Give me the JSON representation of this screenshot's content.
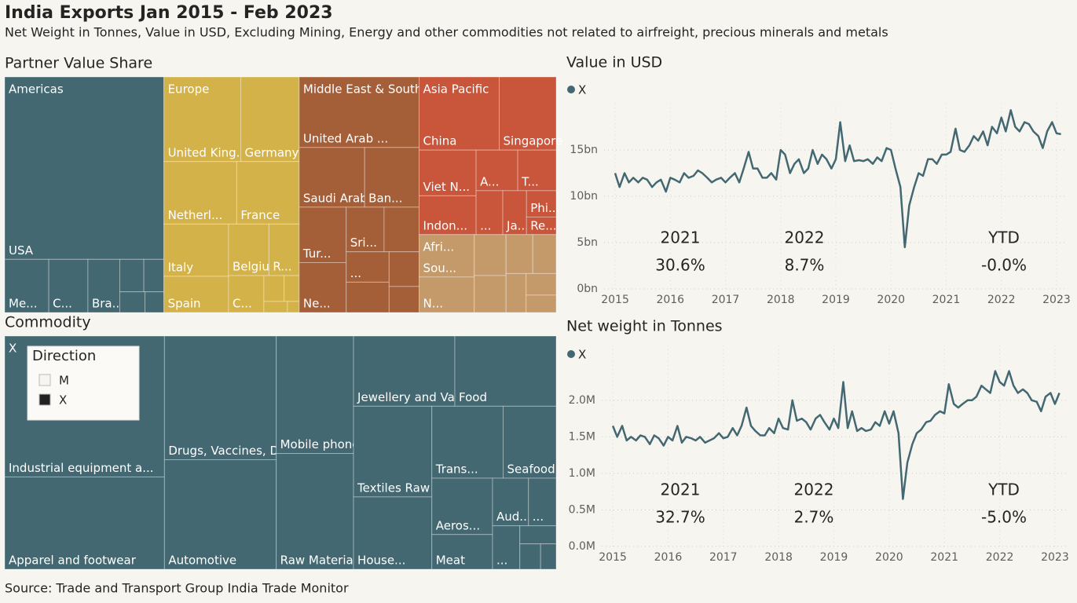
{
  "header": {
    "title": "India Exports Jan 2015 - Feb 2023",
    "subtitle": "Net Weight in Tonnes, Value in USD, Excluding Mining, Energy and other commodities not related to airfreight, precious minerals and metals"
  },
  "source": "Source: Trade and Transport Group India Trade Monitor",
  "chart_data": [
    {
      "type": "treemap",
      "title": "Partner Value Share",
      "groups": [
        {
          "name": "Americas",
          "color": "#436872",
          "categories": [
            "USA",
            "Me...",
            "C...",
            "Bra...",
            null,
            null,
            null,
            null
          ],
          "values": [
            22.3,
            1.8,
            1.6,
            1.3,
            0.6,
            0.5,
            0.4,
            0.3
          ]
        },
        {
          "name": "Europe",
          "color": "#d4b24a",
          "categories": [
            "United King...",
            "Germany",
            "Netherl...",
            "France",
            "Italy",
            "Spain",
            "Belgium",
            "R...",
            "C...",
            null,
            null,
            null,
            null
          ],
          "values": [
            5.0,
            3.8,
            3.5,
            3.0,
            2.6,
            1.8,
            1.6,
            1.2,
            1.0,
            0.4,
            0.3,
            0.2,
            0.1
          ]
        },
        {
          "name": "Middle East & South Asia",
          "color": "#a55f38",
          "categories": [
            "United Arab ...",
            "Saudi Arabia",
            "Ban...",
            "Tur...",
            "Ne...",
            "Sri...",
            null,
            "...",
            null,
            null,
            null
          ],
          "values": [
            6.5,
            3.0,
            2.5,
            2.0,
            1.8,
            1.3,
            1.2,
            1.0,
            1.0,
            0.8,
            0.6
          ]
        },
        {
          "name": "Asia Pacific",
          "color": "#c9553b",
          "categories": [
            "China",
            "Singapore",
            "Viet N...",
            "Indon...",
            "A...",
            "T...",
            "...",
            "Ja...",
            "Phi...",
            "Re..."
          ],
          "values": [
            4.5,
            3.2,
            2.0,
            1.7,
            1.3,
            1.2,
            0.9,
            0.8,
            0.6,
            0.4
          ]
        },
        {
          "name": "Afri...",
          "color": "#c49a6a",
          "categories": [
            "Sou...",
            "N...",
            null,
            null,
            null,
            null,
            null,
            null,
            null
          ],
          "values": [
            1.8,
            1.5,
            1.0,
            0.9,
            0.8,
            0.7,
            0.6,
            0.5,
            0.4
          ]
        }
      ]
    },
    {
      "type": "treemap",
      "title": "Commodity",
      "groups": [
        {
          "name": "X",
          "color": "#436872",
          "categories": [
            "Industrial equipment a...",
            "Apparel and footwear",
            "Drugs, Vaccines, Dia...",
            "Automotive",
            "Mobile phones and c...",
            "Raw Materials an...",
            "Jewellery and Val...",
            "Food",
            "Textiles Raw Mate...",
            "House...",
            "Trans...",
            "Seafood",
            "Aeros...",
            "Meat",
            "Aud...",
            "...",
            "...",
            null,
            null,
            null
          ],
          "values": [
            17.1,
            11.2,
            10.5,
            9.3,
            6.9,
            6.8,
            5.4,
            5.4,
            5.4,
            4.3,
            3.9,
            2.9,
            2.6,
            1.6,
            1.3,
            1.0,
            0.9,
            0.5,
            0.4,
            0.3
          ]
        }
      ],
      "legend": {
        "title": "Direction",
        "items": [
          {
            "name": "M",
            "color": "#f7f5f0"
          },
          {
            "name": "X",
            "color": "#222222"
          }
        ]
      }
    },
    {
      "type": "line",
      "title": "Value in USD",
      "x": [
        2015,
        2015.08,
        2015.17,
        2015.25,
        2015.33,
        2015.42,
        2015.5,
        2015.58,
        2015.67,
        2015.75,
        2015.83,
        2015.92,
        2016,
        2016.08,
        2016.17,
        2016.25,
        2016.33,
        2016.42,
        2016.5,
        2016.58,
        2016.67,
        2016.75,
        2016.83,
        2016.92,
        2017,
        2017.08,
        2017.17,
        2017.25,
        2017.33,
        2017.42,
        2017.5,
        2017.58,
        2017.67,
        2017.75,
        2017.83,
        2017.92,
        2018,
        2018.08,
        2018.17,
        2018.25,
        2018.33,
        2018.42,
        2018.5,
        2018.58,
        2018.67,
        2018.75,
        2018.83,
        2018.92,
        2019,
        2019.08,
        2019.17,
        2019.25,
        2019.33,
        2019.42,
        2019.5,
        2019.58,
        2019.67,
        2019.75,
        2019.83,
        2019.92,
        2020,
        2020.08,
        2020.17,
        2020.25,
        2020.33,
        2020.42,
        2020.5,
        2020.58,
        2020.67,
        2020.75,
        2020.83,
        2020.92,
        2021,
        2021.08,
        2021.17,
        2021.25,
        2021.33,
        2021.42,
        2021.5,
        2021.58,
        2021.67,
        2021.75,
        2021.83,
        2021.92,
        2022,
        2022.08,
        2022.17,
        2022.25,
        2022.33,
        2022.42,
        2022.5,
        2022.58,
        2022.67,
        2022.75,
        2022.83,
        2022.92,
        2023,
        2023.08
      ],
      "series": [
        {
          "name": "X",
          "color": "#436872",
          "values": [
            12.5,
            11.0,
            12.5,
            11.5,
            12.0,
            11.5,
            12.0,
            11.8,
            11.0,
            11.5,
            11.8,
            10.5,
            12.0,
            11.8,
            11.5,
            12.5,
            12.0,
            12.2,
            12.8,
            12.5,
            12.0,
            11.5,
            11.8,
            12.0,
            11.5,
            12.0,
            12.5,
            11.5,
            13.0,
            14.8,
            13.0,
            13.0,
            12.0,
            12.0,
            12.5,
            11.8,
            15.0,
            14.5,
            12.5,
            13.5,
            14.0,
            12.5,
            13.0,
            15.0,
            13.5,
            14.5,
            14.0,
            13.0,
            14.0,
            18.0,
            13.8,
            15.5,
            13.8,
            13.9,
            13.8,
            14.0,
            13.5,
            14.2,
            13.8,
            15.2,
            15.0,
            13.0,
            11.0,
            4.5,
            9.0,
            11.0,
            12.5,
            12.2,
            14.0,
            14.0,
            13.5,
            14.5,
            14.5,
            14.8,
            17.3,
            15.0,
            14.8,
            15.5,
            16.5,
            16.0,
            17.0,
            15.5,
            17.5,
            16.8,
            18.5,
            17.0,
            19.3,
            17.5,
            17.0,
            18.0,
            17.8,
            17.0,
            16.5,
            15.2,
            17.0,
            18.0,
            16.8,
            16.7
          ]
        }
      ],
      "xlim": [
        2014.8,
        2023.2
      ],
      "xticks": [
        2015,
        2016,
        2017,
        2018,
        2019,
        2020,
        2021,
        2022,
        2023
      ],
      "ylim": [
        0,
        20
      ],
      "yticks": [
        {
          "value": 0,
          "label": "0bn"
        },
        {
          "value": 5,
          "label": "5bn"
        },
        {
          "value": 10,
          "label": "10bn"
        },
        {
          "value": 15,
          "label": "15bn"
        }
      ],
      "grid": true,
      "stats": [
        {
          "label": "2021",
          "value": "30.6%"
        },
        {
          "label": "2022",
          "value": "8.7%"
        },
        {
          "label": "YTD",
          "value": "-0.0%"
        }
      ]
    },
    {
      "type": "line",
      "title": "Net weight in Tonnes",
      "x": [
        2015,
        2015.08,
        2015.17,
        2015.25,
        2015.33,
        2015.42,
        2015.5,
        2015.58,
        2015.67,
        2015.75,
        2015.83,
        2015.92,
        2016,
        2016.08,
        2016.17,
        2016.25,
        2016.33,
        2016.42,
        2016.5,
        2016.58,
        2016.67,
        2016.75,
        2016.83,
        2016.92,
        2017,
        2017.08,
        2017.17,
        2017.25,
        2017.33,
        2017.42,
        2017.5,
        2017.58,
        2017.67,
        2017.75,
        2017.83,
        2017.92,
        2018,
        2018.08,
        2018.17,
        2018.25,
        2018.33,
        2018.42,
        2018.5,
        2018.58,
        2018.67,
        2018.75,
        2018.83,
        2018.92,
        2019,
        2019.08,
        2019.17,
        2019.25,
        2019.33,
        2019.42,
        2019.5,
        2019.58,
        2019.67,
        2019.75,
        2019.83,
        2019.92,
        2020,
        2020.08,
        2020.17,
        2020.25,
        2020.33,
        2020.42,
        2020.5,
        2020.58,
        2020.67,
        2020.75,
        2020.83,
        2020.92,
        2021,
        2021.08,
        2021.17,
        2021.25,
        2021.33,
        2021.42,
        2021.5,
        2021.58,
        2021.67,
        2021.75,
        2021.83,
        2021.92,
        2022,
        2022.08,
        2022.17,
        2022.25,
        2022.33,
        2022.42,
        2022.5,
        2022.58,
        2022.67,
        2022.75,
        2022.83,
        2022.92,
        2023,
        2023.08
      ],
      "series": [
        {
          "name": "X",
          "color": "#436872",
          "values": [
            1.65,
            1.5,
            1.65,
            1.45,
            1.5,
            1.45,
            1.52,
            1.5,
            1.4,
            1.52,
            1.48,
            1.38,
            1.5,
            1.45,
            1.65,
            1.42,
            1.5,
            1.48,
            1.45,
            1.5,
            1.42,
            1.45,
            1.48,
            1.55,
            1.48,
            1.5,
            1.62,
            1.52,
            1.65,
            1.9,
            1.65,
            1.58,
            1.52,
            1.52,
            1.62,
            1.55,
            1.75,
            1.62,
            1.6,
            2.0,
            1.72,
            1.75,
            1.7,
            1.6,
            1.75,
            1.8,
            1.7,
            1.6,
            1.75,
            1.62,
            2.25,
            1.62,
            1.85,
            1.58,
            1.62,
            1.58,
            1.6,
            1.7,
            1.65,
            1.85,
            1.68,
            1.85,
            1.55,
            0.65,
            1.15,
            1.4,
            1.55,
            1.6,
            1.7,
            1.72,
            1.8,
            1.85,
            1.82,
            2.22,
            1.95,
            1.9,
            1.95,
            2.0,
            2.0,
            2.05,
            2.2,
            2.15,
            2.1,
            2.4,
            2.25,
            2.2,
            2.4,
            2.2,
            2.1,
            2.15,
            2.1,
            2.0,
            1.98,
            1.85,
            2.05,
            2.1,
            1.95,
            2.1
          ]
        }
      ],
      "xlim": [
        2014.8,
        2023.2
      ],
      "xticks": [
        2015,
        2016,
        2017,
        2018,
        2019,
        2020,
        2021,
        2022,
        2023
      ],
      "ylim": [
        0,
        2.75
      ],
      "yticks": [
        {
          "value": 0,
          "label": "0.0M"
        },
        {
          "value": 0.5,
          "label": "0.5M"
        },
        {
          "value": 1,
          "label": "1.0M"
        },
        {
          "value": 1.5,
          "label": "1.5M"
        },
        {
          "value": 2,
          "label": "2.0M"
        }
      ],
      "grid": true,
      "stats": [
        {
          "label": "2021",
          "value": "32.7%"
        },
        {
          "label": "2022",
          "value": "2.7%"
        },
        {
          "label": "YTD",
          "value": "-5.0%"
        }
      ]
    }
  ]
}
